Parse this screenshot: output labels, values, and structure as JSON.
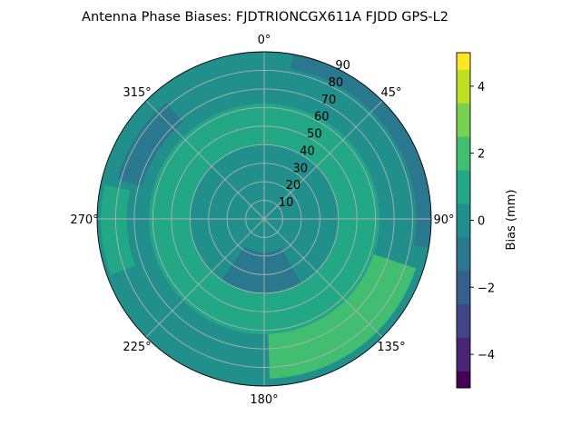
{
  "chart_data": {
    "type": "heatmap",
    "projection": "polar",
    "title": "Antenna Phase Biases: FJDTRIONCGX611A FJDD GPS-L2",
    "theta_ticks": [
      {
        "label": "0°",
        "deg": 0
      },
      {
        "label": "45°",
        "deg": 45
      },
      {
        "label": "90°",
        "deg": 90
      },
      {
        "label": "135°",
        "deg": 135
      },
      {
        "label": "180°",
        "deg": 180
      },
      {
        "label": "225°",
        "deg": 225
      },
      {
        "label": "270°",
        "deg": 270
      },
      {
        "label": "315°",
        "deg": 315
      }
    ],
    "radial_ticks": [
      10,
      20,
      30,
      40,
      50,
      60,
      70,
      80,
      90
    ],
    "radial_range": [
      0,
      90
    ],
    "grid": true,
    "colorbar": {
      "label": "Bias (mm)",
      "range": [
        -5,
        5
      ],
      "ticks": [
        -4,
        -2,
        0,
        2,
        4
      ],
      "levels": [
        -5,
        -4.5,
        -4,
        -3.5,
        -3,
        -2.5,
        -2,
        -1.5,
        -1,
        -0.5,
        0,
        0.5,
        1,
        1.5,
        2,
        2.5,
        3,
        3.5,
        4,
        4.5,
        5
      ],
      "colormap": "viridis",
      "colors": [
        "#440154",
        "#482475",
        "#414487",
        "#355f8d",
        "#2a788e",
        "#21908d",
        "#22a884",
        "#42be71",
        "#7ad151",
        "#bddf26",
        "#fde725"
      ]
    },
    "regions": [
      {
        "name": "base",
        "value": 0.2
      },
      {
        "name": "ring-60",
        "value": 0.8
      },
      {
        "name": "band-south-east",
        "value": 1.6
      },
      {
        "name": "band-west",
        "value": 1.3
      },
      {
        "name": "patch-north-east",
        "value": 1.3
      },
      {
        "name": "low-north-east-rim",
        "value": -0.7
      },
      {
        "name": "low-south",
        "value": -0.7
      },
      {
        "name": "low-north-west",
        "value": -0.6
      }
    ]
  }
}
